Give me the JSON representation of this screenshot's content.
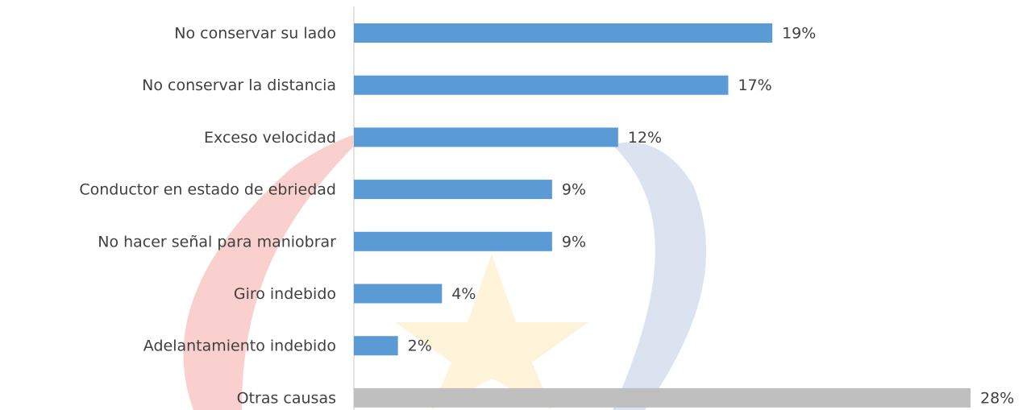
{
  "chart_data": {
    "type": "bar",
    "orientation": "horizontal",
    "categories": [
      "No conservar su lado",
      "No conservar la distancia",
      "Exceso velocidad",
      "Conductor en estado de ebriedad",
      "No hacer señal para maniobrar",
      "Giro indebido",
      "Adelantamiento indebido",
      "Otras causas"
    ],
    "values": [
      19,
      17,
      12,
      9,
      9,
      4,
      2,
      28
    ],
    "value_labels": [
      "19%",
      "17%",
      "12%",
      "9%",
      "9%",
      "4%",
      "2%",
      "28%"
    ],
    "colors": [
      "#5b9bd5",
      "#5b9bd5",
      "#5b9bd5",
      "#5b9bd5",
      "#5b9bd5",
      "#5b9bd5",
      "#5b9bd5",
      "#bfbfbf"
    ]
  }
}
